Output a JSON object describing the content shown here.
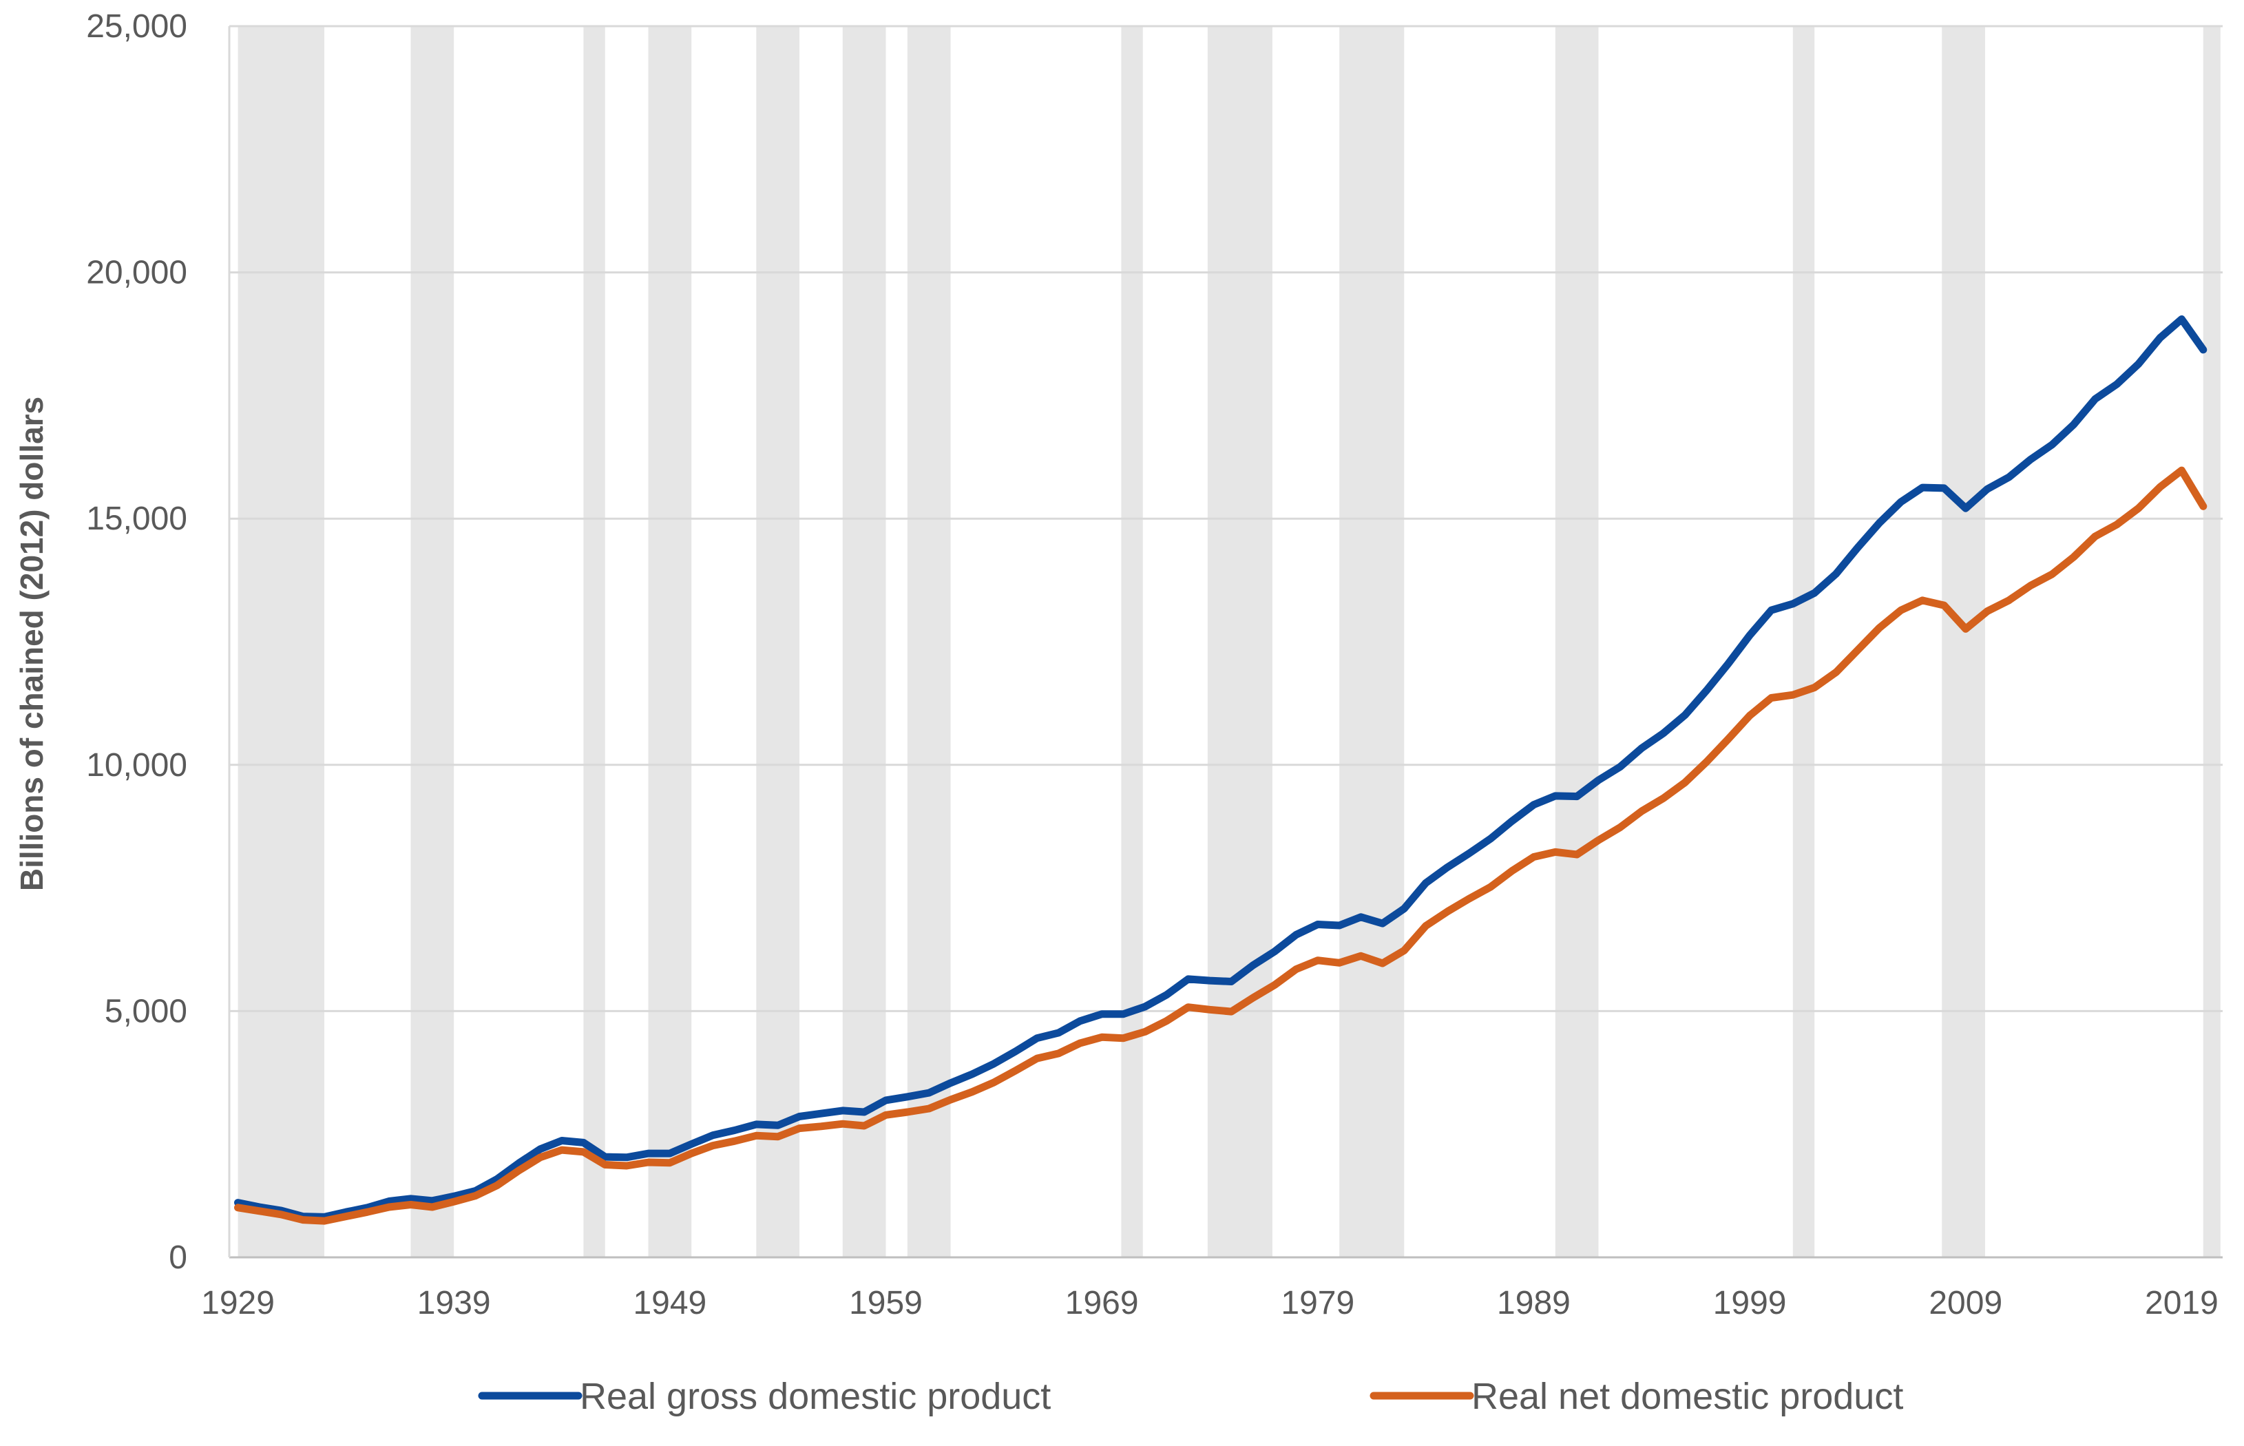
{
  "chart_data": {
    "type": "line",
    "title": "",
    "xlabel": "",
    "ylabel": "Billions of chained (2012) dollars",
    "ylim": [
      0,
      25000
    ],
    "xlim": [
      1929,
      2020
    ],
    "grid": true,
    "legend_position": "bottom",
    "y_ticks": [
      0,
      5000,
      10000,
      15000,
      20000,
      25000
    ],
    "y_tick_labels": [
      "0",
      "5,000",
      "10,000",
      "15,000",
      "20,000",
      "25,000"
    ],
    "x_ticks": [
      1929,
      1939,
      1949,
      1959,
      1969,
      1979,
      1989,
      1999,
      2009,
      2019
    ],
    "x_tick_labels": [
      "1929",
      "1939",
      "1949",
      "1959",
      "1969",
      "1979",
      "1989",
      "1999",
      "2009",
      "2019"
    ],
    "recessions": [
      [
        1929.0,
        1933.0
      ],
      [
        1937.0,
        1939.0
      ],
      [
        1945.0,
        1946.0
      ],
      [
        1948.0,
        1950.0
      ],
      [
        1953.0,
        1955.0
      ],
      [
        1957.0,
        1959.0
      ],
      [
        1960.0,
        1962.0
      ],
      [
        1969.9,
        1970.9
      ],
      [
        1973.9,
        1976.9
      ],
      [
        1980.0,
        1983.0
      ],
      [
        1990.0,
        1992.0
      ],
      [
        2001.0,
        2002.0
      ],
      [
        2007.9,
        2009.9
      ],
      [
        2020.0,
        2020.8
      ]
    ],
    "recession_color": "#e6e6e6",
    "x": [
      1929,
      1930,
      1931,
      1932,
      1933,
      1934,
      1935,
      1936,
      1937,
      1938,
      1939,
      1940,
      1941,
      1942,
      1943,
      1944,
      1945,
      1946,
      1947,
      1948,
      1949,
      1950,
      1951,
      1952,
      1953,
      1954,
      1955,
      1956,
      1957,
      1958,
      1959,
      1960,
      1961,
      1962,
      1963,
      1964,
      1965,
      1966,
      1967,
      1968,
      1969,
      1970,
      1971,
      1972,
      1973,
      1974,
      1975,
      1976,
      1977,
      1978,
      1979,
      1980,
      1981,
      1982,
      1983,
      1984,
      1985,
      1986,
      1987,
      1988,
      1989,
      1990,
      1991,
      1992,
      1993,
      1994,
      1995,
      1996,
      1997,
      1998,
      1999,
      2000,
      2001,
      2002,
      2003,
      2004,
      2005,
      2006,
      2007,
      2008,
      2009,
      2010,
      2011,
      2012,
      2013,
      2014,
      2015,
      2016,
      2017,
      2018,
      2019,
      2020
    ],
    "series": [
      {
        "name": "Real gross domestic product",
        "color": "#0c4a9c",
        "values": [
          1110,
          1020,
          950,
          830,
          820,
          920,
          1010,
          1140,
          1190,
          1150,
          1240,
          1350,
          1590,
          1910,
          2200,
          2370,
          2330,
          2040,
          2030,
          2110,
          2110,
          2300,
          2480,
          2580,
          2700,
          2680,
          2860,
          2920,
          2980,
          2950,
          3190,
          3260,
          3340,
          3540,
          3720,
          3930,
          4180,
          4450,
          4560,
          4800,
          4940,
          4940,
          5090,
          5330,
          5650,
          5620,
          5600,
          5930,
          6210,
          6550,
          6760,
          6740,
          6910,
          6780,
          7080,
          7600,
          7920,
          8200,
          8500,
          8860,
          9190,
          9370,
          9360,
          9690,
          9960,
          10340,
          10640,
          11010,
          11510,
          12050,
          12630,
          13140,
          13270,
          13490,
          13880,
          14410,
          14910,
          15340,
          15630,
          15620,
          15210,
          15600,
          15840,
          16200,
          16500,
          16910,
          17430,
          17730,
          18140,
          18670,
          19050,
          18430
        ]
      },
      {
        "name": "Real net domestic product",
        "color": "#d4611d",
        "values": [
          1010,
          940,
          870,
          760,
          740,
          830,
          920,
          1020,
          1070,
          1020,
          1130,
          1250,
          1460,
          1760,
          2030,
          2180,
          2140,
          1880,
          1860,
          1930,
          1920,
          2110,
          2270,
          2360,
          2470,
          2450,
          2620,
          2660,
          2710,
          2670,
          2890,
          2950,
          3020,
          3200,
          3360,
          3550,
          3790,
          4040,
          4140,
          4350,
          4470,
          4450,
          4580,
          4800,
          5080,
          5030,
          4990,
          5270,
          5530,
          5850,
          6030,
          5980,
          6120,
          5970,
          6230,
          6730,
          7020,
          7280,
          7520,
          7850,
          8130,
          8230,
          8180,
          8470,
          8730,
          9060,
          9320,
          9640,
          10060,
          10520,
          11000,
          11360,
          11420,
          11570,
          11880,
          12330,
          12780,
          13140,
          13340,
          13240,
          12760,
          13120,
          13340,
          13640,
          13870,
          14220,
          14640,
          14880,
          15210,
          15640,
          15980,
          15250
        ]
      }
    ]
  }
}
